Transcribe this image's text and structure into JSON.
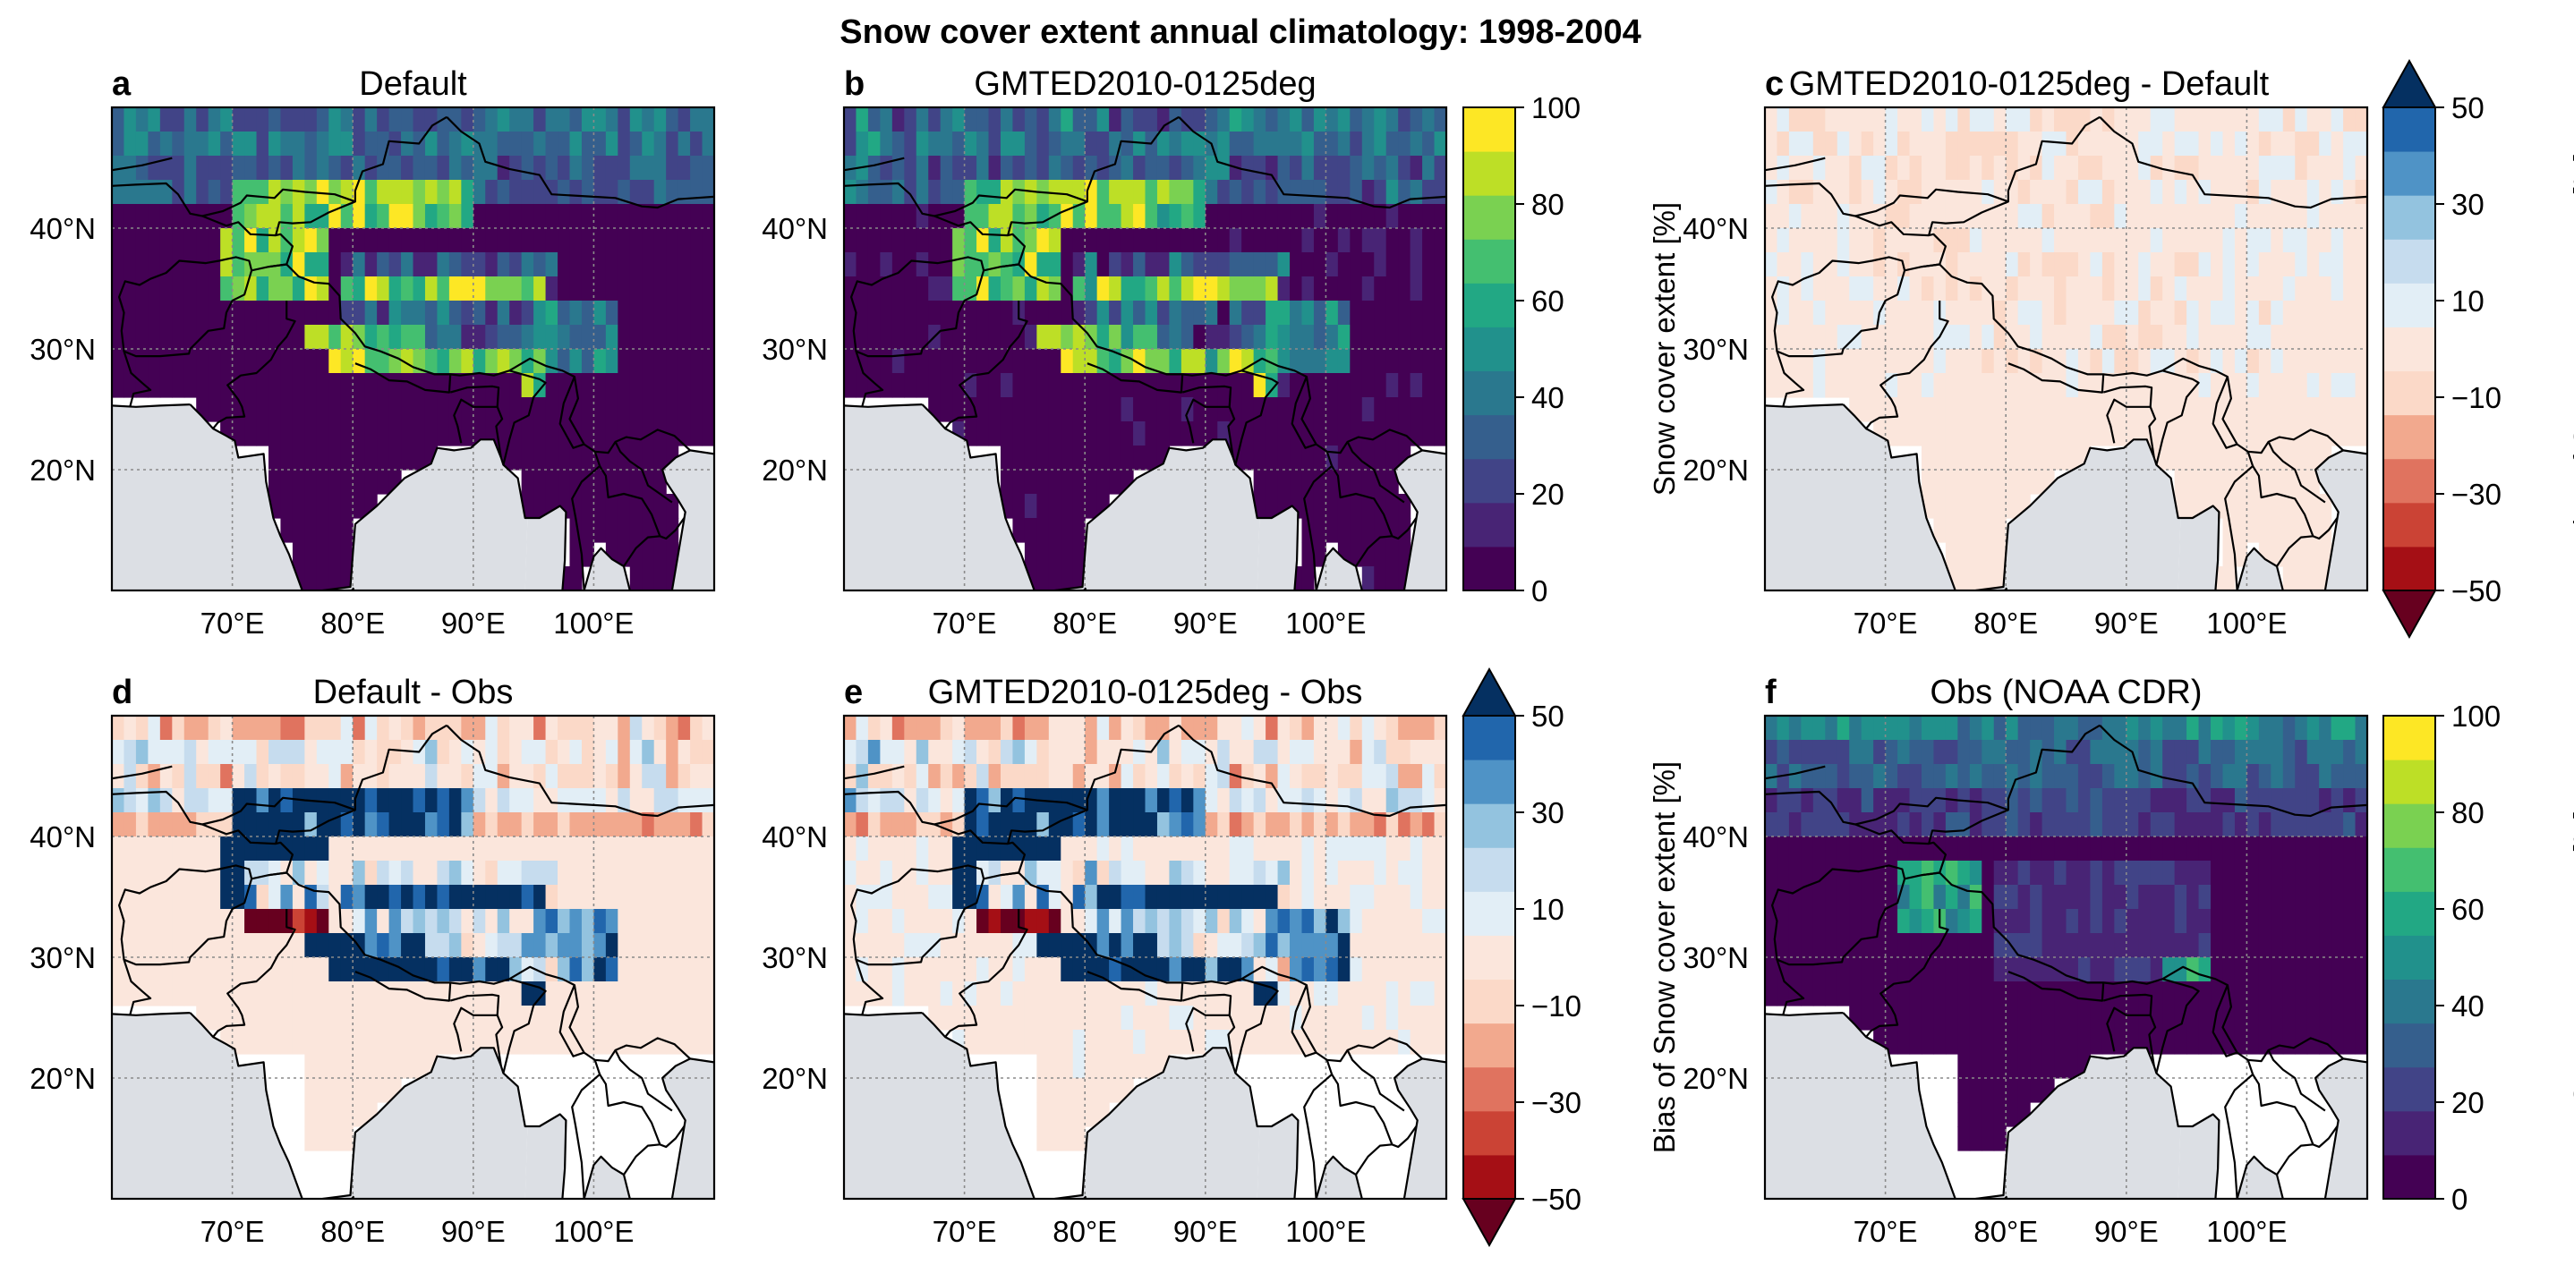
{
  "figure": {
    "title": "Snow cover extent annual climatology: 1998-2004"
  },
  "map_axes": {
    "lat_labels": [
      "40°N",
      "30°N",
      "20°N"
    ],
    "lat_values": [
      40,
      30,
      20
    ],
    "lon_labels": [
      "70°E",
      "80°E",
      "90°E",
      "100°E"
    ],
    "lon_values": [
      70,
      80,
      90,
      100
    ],
    "lon_range": [
      60,
      110
    ],
    "lat_range": [
      10,
      50
    ]
  },
  "panels": [
    {
      "letter": "a",
      "title": "Default",
      "kind": "abs",
      "field": "default"
    },
    {
      "letter": "b",
      "title": "GMTED2010-0125deg",
      "kind": "abs",
      "field": "gmted"
    },
    {
      "letter": "c",
      "title": "GMTED2010-0125deg - Default",
      "kind": "bias",
      "field": "gmted_minus_default"
    },
    {
      "letter": "d",
      "title": "Default - Obs",
      "kind": "bias",
      "field": "default_minus_obs"
    },
    {
      "letter": "e",
      "title": "GMTED2010-0125deg - Obs",
      "kind": "bias",
      "field": "gmted_minus_obs"
    },
    {
      "letter": "f",
      "title": "Obs (NOAA CDR)",
      "kind": "abs",
      "field": "obs"
    }
  ],
  "colorbars": {
    "abs": {
      "label": "Snow cover extent [%]",
      "tick_labels": [
        "0",
        "20",
        "40",
        "60",
        "80",
        "100"
      ],
      "tick_values": [
        0,
        20,
        40,
        60,
        80,
        100
      ],
      "range": [
        0,
        100
      ],
      "colors": [
        "#440154",
        "#482475",
        "#414487",
        "#355f8d",
        "#2a788e",
        "#21918c",
        "#22a884",
        "#44bf70",
        "#7ad151",
        "#bddf26",
        "#fde725"
      ]
    },
    "bias": {
      "label": "Bias of Snow cover extent [%]",
      "tick_labels": [
        "−50",
        "−30",
        "−10",
        "10",
        "30",
        "50"
      ],
      "tick_values": [
        -50,
        -30,
        -10,
        10,
        30,
        50
      ],
      "range": [
        -50,
        50
      ],
      "extend": "both",
      "under_color": "#67001f",
      "over_color": "#053061",
      "colors": [
        "#a50f15",
        "#cb4335",
        "#e0735f",
        "#f2a98e",
        "#fbd9c8",
        "#fbe6dc",
        "#e2eef6",
        "#c6dcee",
        "#93c3df",
        "#4f93c6",
        "#2166ac"
      ]
    }
  },
  "colors": {
    "ocean": "#dcdfe4",
    "land_nodata": "#ffffff",
    "coast": "#000000",
    "grid": "#8a8a8a"
  },
  "chart_data": {
    "type": "heatmap",
    "title": "Snow cover extent annual climatology: 1998-2004",
    "x": [
      60.5,
      61.5,
      62.5,
      63.5,
      64.5,
      65.5,
      66.5,
      67.5,
      68.5,
      69.5,
      70.5,
      71.5,
      72.5,
      73.5,
      74.5,
      75.5,
      76.5,
      77.5,
      78.5,
      79.5,
      80.5,
      81.5,
      82.5,
      83.5,
      84.5,
      85.5,
      86.5,
      87.5,
      88.5,
      89.5,
      90.5,
      91.5,
      92.5,
      93.5,
      94.5,
      95.5,
      96.5,
      97.5,
      98.5,
      99.5,
      100.5,
      101.5,
      102.5,
      103.5,
      104.5,
      105.5,
      106.5,
      107.5,
      108.5,
      109.5
    ],
    "y": [
      49,
      47,
      45,
      43,
      41,
      39,
      37,
      35,
      33,
      31,
      29,
      27,
      25,
      23,
      21,
      19,
      17,
      15,
      13,
      11
    ],
    "xlabel": "",
    "ylabel": "",
    "note_resolution": "grid spacing 1° lon × 2° lat (estimated)"
  }
}
